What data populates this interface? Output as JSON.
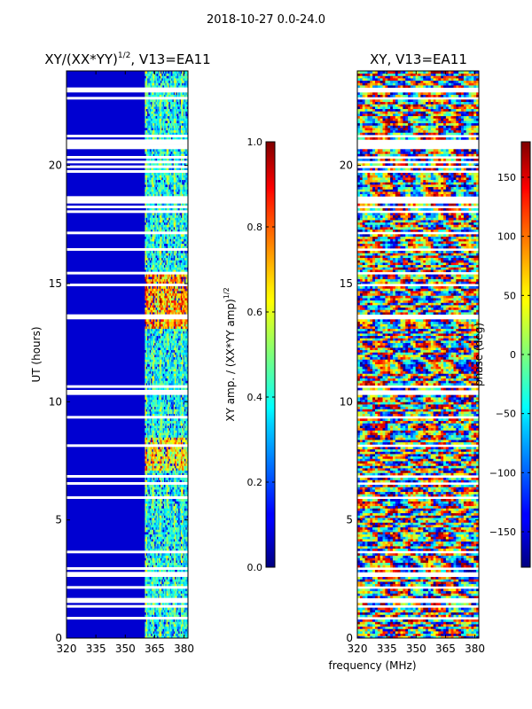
{
  "suptitle": "2018-10-27 0.0-24.0",
  "x_axis_label": "frequency (MHz)",
  "chart_data": [
    {
      "type": "heatmap",
      "id": "amp",
      "title": "XY/(XX*YY)",
      "title_sup": "1/2",
      "title_tail": ", V13=EA11",
      "xlabel": "",
      "ylabel": "UT (hours)",
      "xlim": [
        320,
        382
      ],
      "ylim": [
        0,
        24
      ],
      "xticks": [
        320,
        335,
        350,
        365,
        380
      ],
      "yticks": [
        0,
        5,
        10,
        15,
        20
      ],
      "colorbar": {
        "label": "XY amp. / (XX*YY amp)",
        "label_sup": "1/2",
        "range": [
          0.0,
          1.0
        ],
        "ticks": [
          "0.0",
          "0.2",
          "0.4",
          "0.6",
          "0.8",
          "1.0"
        ],
        "tick_values": [
          0.0,
          0.2,
          0.4,
          0.6,
          0.8,
          1.0
        ]
      },
      "flagged_channel_range_mhz": [
        320,
        360
      ],
      "active_channel_range_mhz": [
        360,
        382
      ]
    },
    {
      "type": "heatmap",
      "id": "phase",
      "title": "XY, V13=EA11",
      "xlabel": "",
      "ylabel": "",
      "xlim": [
        320,
        382
      ],
      "ylim": [
        0,
        24
      ],
      "xticks": [
        320,
        335,
        350,
        365,
        380
      ],
      "yticks": [
        0,
        5,
        10,
        15,
        20
      ],
      "colorbar": {
        "label": "phase (deg)",
        "range": [
          -180,
          180
        ],
        "ticks": [
          "−150",
          "−100",
          "−50",
          "0",
          "50",
          "100",
          "150"
        ],
        "tick_values": [
          -150,
          -100,
          -50,
          0,
          50,
          100,
          150
        ]
      }
    }
  ]
}
